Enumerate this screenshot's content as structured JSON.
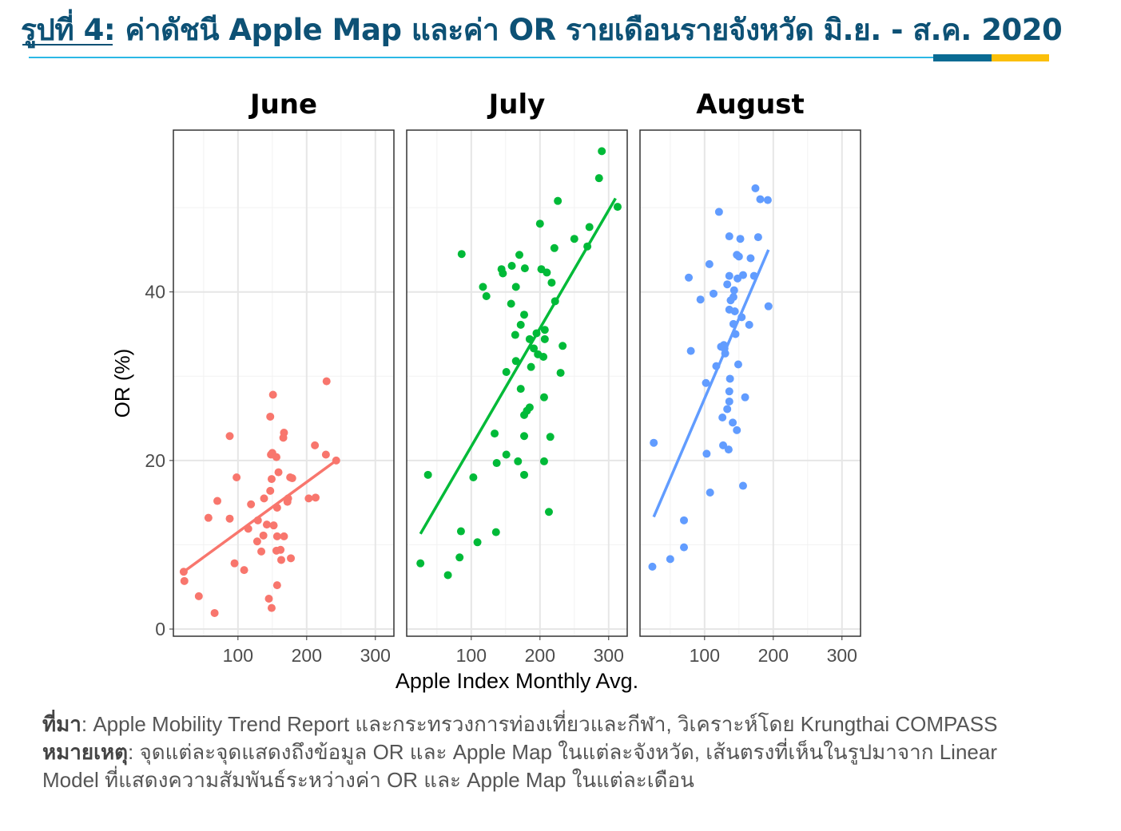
{
  "title": "รูปที่ 4: ค่าดัชนี Apple Map และค่า OR รายเดือนรายจังหวัด มิ.ย. - ส.ค. 2020",
  "notes": {
    "source_label": "ที่มา",
    "source_text": ": Apple Mobility Trend Report และกระทรวงการท่องเที่ยวและกีฬา, วิเคราะห์โดย Krungthai COMPASS",
    "note_label": "หมายเหตุ",
    "note_text": ": จุดแต่ละจุดแสดงถึงข้อมูล OR และ Apple Map ในแต่ละจังหวัด, เส้นตรงที่เห็นในรูปมาจาก Linear Model ที่แสดงความสัมพันธ์ระหว่างค่า OR และ Apple Map ในแต่ละเดือน"
  },
  "colors": {
    "title": "#0d5175",
    "june": "#f8766d",
    "july": "#00ba38",
    "august": "#619cff"
  },
  "chart_data": {
    "type": "scatter",
    "xlabel": "Apple Index Monthly Avg.",
    "ylabel": "OR (%)",
    "xlim": [
      6,
      327
    ],
    "ylim": [
      -0.85,
      59.2
    ],
    "xticks": [
      100,
      200,
      300
    ],
    "yticks": [
      0,
      20,
      40
    ],
    "grid": true,
    "panels": [
      {
        "name": "June",
        "color": "#f8766d",
        "fit": [
          [
            21,
            6.8
          ],
          [
            243,
            20.0
          ]
        ],
        "points": [
          [
            21,
            6.8
          ],
          [
            22,
            5.7
          ],
          [
            43,
            3.9
          ],
          [
            66,
            1.9
          ],
          [
            57,
            13.2
          ],
          [
            70,
            15.2
          ],
          [
            88,
            22.9
          ],
          [
            98,
            18.0
          ],
          [
            88,
            13.1
          ],
          [
            95,
            7.8
          ],
          [
            109,
            7.0
          ],
          [
            119,
            14.8
          ],
          [
            115,
            11.9
          ],
          [
            128,
            10.4
          ],
          [
            129,
            12.9
          ],
          [
            134,
            9.2
          ],
          [
            137,
            11.1
          ],
          [
            138,
            15.5
          ],
          [
            142,
            12.4
          ],
          [
            145,
            3.6
          ],
          [
            147,
            16.4
          ],
          [
            147,
            25.2
          ],
          [
            149,
            17.8
          ],
          [
            148,
            20.7
          ],
          [
            151,
            27.8
          ],
          [
            150,
            20.9
          ],
          [
            152,
            12.3
          ],
          [
            156,
            20.4
          ],
          [
            157,
            14.4
          ],
          [
            157,
            11.0
          ],
          [
            156,
            9.3
          ],
          [
            157,
            5.2
          ],
          [
            149,
            2.5
          ],
          [
            159,
            18.6
          ],
          [
            162,
            9.4
          ],
          [
            163,
            8.2
          ],
          [
            167,
            23.3
          ],
          [
            166,
            22.7
          ],
          [
            167,
            11.0
          ],
          [
            172,
            15.1
          ],
          [
            173,
            15.5
          ],
          [
            176,
            18.0
          ],
          [
            177,
            8.4
          ],
          [
            179,
            17.9
          ],
          [
            203,
            15.5
          ],
          [
            212,
            21.8
          ],
          [
            213,
            15.6
          ],
          [
            228,
            20.7
          ],
          [
            229,
            29.4
          ],
          [
            243,
            20.0
          ]
        ]
      },
      {
        "name": "July",
        "color": "#00ba38",
        "fit": [
          [
            26,
            11.3
          ],
          [
            310,
            51.1
          ]
        ],
        "points": [
          [
            26,
            7.8
          ],
          [
            37,
            18.3
          ],
          [
            66,
            6.4
          ],
          [
            83,
            8.5
          ],
          [
            85,
            11.6
          ],
          [
            86,
            44.5
          ],
          [
            103,
            18.0
          ],
          [
            109,
            10.3
          ],
          [
            117,
            40.6
          ],
          [
            122,
            39.5
          ],
          [
            134,
            23.2
          ],
          [
            136,
            11.5
          ],
          [
            137,
            19.7
          ],
          [
            144,
            42.7
          ],
          [
            146,
            42.2
          ],
          [
            151,
            20.7
          ],
          [
            151,
            30.5
          ],
          [
            158,
            38.6
          ],
          [
            159,
            43.1
          ],
          [
            164,
            34.9
          ],
          [
            165,
            40.6
          ],
          [
            165,
            31.8
          ],
          [
            168,
            19.9
          ],
          [
            170,
            44.4
          ],
          [
            172,
            28.5
          ],
          [
            172,
            36.1
          ],
          [
            177,
            37.3
          ],
          [
            177,
            25.4
          ],
          [
            177,
            18.3
          ],
          [
            177,
            22.9
          ],
          [
            178,
            42.8
          ],
          [
            181,
            25.9
          ],
          [
            185,
            34.4
          ],
          [
            185,
            26.3
          ],
          [
            187,
            31.1
          ],
          [
            191,
            33.3
          ],
          [
            195,
            35.1
          ],
          [
            197,
            32.6
          ],
          [
            200,
            48.1
          ],
          [
            202,
            42.7
          ],
          [
            205,
            32.3
          ],
          [
            206,
            27.5
          ],
          [
            206,
            19.9
          ],
          [
            207,
            34.4
          ],
          [
            207,
            35.5
          ],
          [
            210,
            42.3
          ],
          [
            213,
            13.9
          ],
          [
            215,
            22.8
          ],
          [
            217,
            41.1
          ],
          [
            221,
            45.2
          ],
          [
            222,
            38.9
          ],
          [
            226,
            50.8
          ],
          [
            230,
            30.4
          ],
          [
            233,
            33.6
          ],
          [
            250,
            46.3
          ],
          [
            269,
            45.4
          ],
          [
            272,
            47.7
          ],
          [
            286,
            53.5
          ],
          [
            290,
            56.7
          ],
          [
            313,
            50.1
          ]
        ]
      },
      {
        "name": "August",
        "color": "#619cff",
        "fit": [
          [
            26,
            13.3
          ],
          [
            193,
            45.0
          ]
        ],
        "points": [
          [
            24,
            7.4
          ],
          [
            26,
            22.1
          ],
          [
            50,
            8.3
          ],
          [
            70,
            12.9
          ],
          [
            70,
            9.7
          ],
          [
            77,
            41.7
          ],
          [
            80,
            33.0
          ],
          [
            94,
            39.1
          ],
          [
            102,
            29.2
          ],
          [
            103,
            20.8
          ],
          [
            107,
            43.3
          ],
          [
            108,
            16.2
          ],
          [
            113,
            39.8
          ],
          [
            117,
            31.2
          ],
          [
            121,
            49.5
          ],
          [
            124,
            33.5
          ],
          [
            126,
            25.1
          ],
          [
            127,
            21.8
          ],
          [
            128,
            33.7
          ],
          [
            129,
            33.3
          ],
          [
            130,
            32.7
          ],
          [
            133,
            40.9
          ],
          [
            133,
            26.1
          ],
          [
            135,
            21.3
          ],
          [
            136,
            46.6
          ],
          [
            136,
            41.9
          ],
          [
            136,
            37.9
          ],
          [
            136,
            28.2
          ],
          [
            136,
            27.0
          ],
          [
            137,
            29.7
          ],
          [
            138,
            39.0
          ],
          [
            141,
            24.5
          ],
          [
            142,
            36.2
          ],
          [
            142,
            39.4
          ],
          [
            143,
            40.2
          ],
          [
            144,
            37.7
          ],
          [
            145,
            35.0
          ],
          [
            147,
            23.6
          ],
          [
            148,
            41.6
          ],
          [
            149,
            31.4
          ],
          [
            147,
            44.4
          ],
          [
            150,
            44.2
          ],
          [
            152,
            46.3
          ],
          [
            154,
            37.0
          ],
          [
            156,
            42.0
          ],
          [
            156,
            17.0
          ],
          [
            159,
            27.5
          ],
          [
            165,
            36.1
          ],
          [
            167,
            44.0
          ],
          [
            172,
            41.9
          ],
          [
            174,
            52.3
          ],
          [
            178,
            46.5
          ],
          [
            181,
            51.0
          ],
          [
            192,
            50.9
          ],
          [
            193,
            38.3
          ]
        ]
      }
    ]
  }
}
